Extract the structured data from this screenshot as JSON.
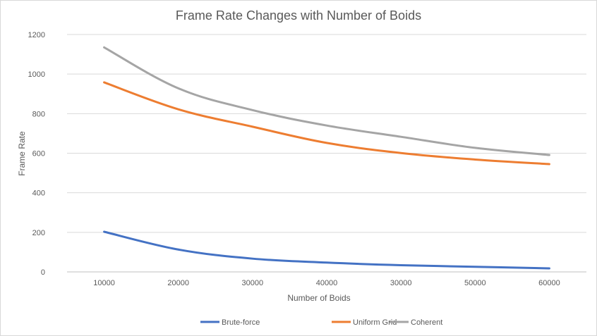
{
  "chart_data": {
    "type": "line",
    "title": "Frame Rate Changes with Number of Boids",
    "xlabel": "Number of Boids",
    "ylabel": "Frame Rate",
    "categories": [
      "10000",
      "20000",
      "30000",
      "40000",
      "30000",
      "50000",
      "60000"
    ],
    "ylim": [
      0,
      1200
    ],
    "yticks": [
      0,
      200,
      400,
      600,
      800,
      1000,
      1200
    ],
    "grid": true,
    "legend_position": "bottom",
    "series": [
      {
        "name": "Brute-force",
        "color": "#4472c4",
        "values": [
          203,
          113,
          67,
          47,
          34,
          26,
          18
        ]
      },
      {
        "name": "Uniform Grid",
        "color": "#ed7d31",
        "values": [
          958,
          822,
          734,
          652,
          601,
          568,
          545
        ]
      },
      {
        "name": "Coherent",
        "color": "#a5a5a5",
        "values": [
          1135,
          928,
          818,
          740,
          683,
          627,
          591
        ]
      }
    ]
  }
}
